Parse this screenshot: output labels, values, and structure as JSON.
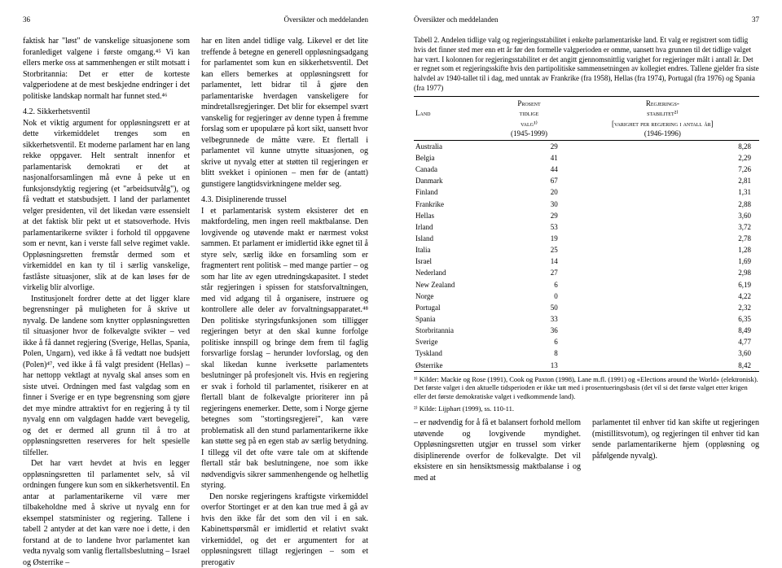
{
  "leftPage": {
    "pageNum": "36",
    "running": "Översikter och meddelanden",
    "col1": {
      "p1": "faktisk har \"løst\" de vanskelige situasjonene som foranlediget valgene i første omgang.⁴⁵ Vi kan ellers merke oss at sammenhengen er stilt motsatt i Storbritannia: Det er etter de korteste valgperiodene at de mest beskjedne endringer i det politiske landskap normalt har funnet sted.⁴⁶",
      "h1": "4.2. Sikkerhetsventil",
      "p2": "Nok et viktig argument for oppløsningsrett er at dette virkemiddelet trenges som en sikkerhetsventil. Et moderne parlament har en lang rekke oppgaver. Helt sentralt innenfor et parlamentarisk demokrati er det at nasjonalforsamlingen må evne å peke ut en funksjonsdyktig regjering (et \"arbeidsutvålg\"), og få vedtatt et statsbudsjett. I land der parlamentet velger presidenten, vil det likedan være essensielt at det faktisk blir pekt ut et statsoverhode. Hvis parlamentarikerne svikter i forhold til oppgavene som er nevnt, kan i verste fall selve regimet vakle. Oppløsningsretten fremstår dermed som et virkemiddel en kan ty til i særlig vanskelige, fastlåste situasjoner, slik at de kan løses før de virkelig blir alvorlige.",
      "p3": "Institusjonelt fordrer dette at det ligger klare begrensninger på muligheten for å skrive ut nyvalg. De landene som knytter oppløsningsretten til situasjoner hvor de folkevalgte svikter – ved ikke å få dannet regjering (Sverige, Hellas, Spania, Polen, Ungarn), ved ikke å få vedtatt noe budsjett (Polen)⁴⁷, ved ikke å få valgt president (Hellas) – har nettopp vektlagt at nyvalg skal anses som en siste utvei. Ordningen med fast valgdag som en finner i Sverige er en type begrensning som gjøre det mye mindre attraktivt for en regjering å ty til nyvalg enn om valgdagen hadde vært bevegelig, og det er dermed all grunn til å tro at oppløsningsretten reserveres for helt spesielle tilfeller.",
      "p4": "Det har vært hevdet at hvis en legger oppløsningsretten til parlamentet selv, så vil ordningen fungere kun som en sikkerhetsventil. En antar at parlamentarikerne vil være mer tilbakeholdne med å skrive ut nyvalg enn for eksempel statsminister og regjering. Tallene i tabell 2 antyder at det kan være noe i dette, i den forstand at de to landene hvor parlamentet kan vedta nyvalg som vanlig flertallsbeslutning – Israel og Østerrike –"
    },
    "col2": {
      "p1": "har en liten andel tidlige valg. Likevel er det lite treffende å betegne en generell oppløsningsadgang for parlamentet som kun en sikkerhetsventil. Det kan ellers bemerkes at oppløsningsrett for parlamentet, lett bidrar til å gjøre den parlamentariske hverdagen vanskeligere for mindretallsregjeringer. Det blir for eksempel svært vanskelig for regjeringer av denne typen å fremme forslag som er upopulære på kort sikt, uansett hvor velbegrunnede de måtte være. Et flertall i parlamentet vil kunne utnytte situasjonen, og skrive ut nyvalg etter at støtten til regjeringen er blitt svekket i opinionen – men før de (antatt) gunstigere langtidsvirkningene melder seg.",
      "h2": "4.3. Disiplinerende trussel",
      "p2": "I et parlamentarisk system eksisterer det en maktfordeling, men ingen reell maktbalanse. Den lovgivende og utøvende makt er nærmest vokst sammen. Et parlament er imidlertid ikke egnet til å styre selv, særlig ikke en forsamling som er fragmentert rent politisk – med mange partier – og som har lite av egen utredningskapasitet. I stedet står regjeringen i spissen for statsforvaltningen, med vid adgang til å organisere, instruere og kontrollere alle deler av forvaltningsapparatet.⁴⁸ Den politiske styringsfunksjonen som tilligger regjeringen betyr at den skal kunne forfolge politiske innspill og bringe dem frem til faglig forsvarlige forslag – herunder lovforslag, og den skal likedan kunne iverksette parlamentets beslutninger på profesjonelt vis. Hvis en regjering er svak i forhold til parlamentet, risikerer en at flertall blant de folkevalgte prioriterer inn på regjeringens enemerker. Dette, som i Norge gjerne betegnes som \"stortingsregjerei\", kan være problematisk all den stund parlamentarikerne ikke kan støtte seg på en egen stab av særlig betydning. I tillegg vil det ofte være tale om at skiftende flertall står bak beslutningene, noe som ikke nødvendigvis sikrer sammenhengende og helhetlig styring.",
      "p3": "Den norske regjeringens kraftigste virkemiddel overfor Stortinget er at den kan true med å gå av hvis den ikke får det som den vil i en sak. Kabinettspørsmål er imidlertid et relativt svakt virkemiddel, og det er argumentert for at oppløsningsrett tillagt regjeringen – som et prerogativ"
    }
  },
  "rightPage": {
    "running": "Översikter och meddelanden",
    "pageNum": "37",
    "table": {
      "caption": "Tabell 2. Andelen tidlige valg og regjeringsstabilitet i enkelte parlamentariske land. Et valg er registrert som tidlig hvis det finner sted mer enn ett år før den formelle valgperioden er omme, uansett hva grunnen til det tidlige valget har vært. I kolonnen for regjeringsstabilitet er det angitt gjennomsnittlig varighet for regjeringer målt i antall år. Det er regnet som et regjeringsskifte hvis den partipolitiske sammensetningen av kollegiet endres. Tallene gjelder fra siste halvdel av 1940-tallet til i dag, med unntak av Frankrike (fra 1958), Hellas (fra 1974), Portugal (fra 1976) og Spania (fra 1977)",
      "head": {
        "c1": "Land",
        "c2a": "Prosent",
        "c2b": "tidlige",
        "c2c": "valg¹⁾",
        "c2d": "(1945-1999)",
        "c3a": "Regjerings-",
        "c3b": "stabilitet²⁾",
        "c3c": "[varighet per regjering i antall år]",
        "c3d": "(1946-1996)"
      },
      "rows": [
        [
          "Australia",
          "29",
          "8,28"
        ],
        [
          "Belgia",
          "41",
          "2,29"
        ],
        [
          "Canada",
          "44",
          "7,26"
        ],
        [
          "Danmark",
          "67",
          "2,81"
        ],
        [
          "Finland",
          "20",
          "1,31"
        ],
        [
          "Frankrike",
          "30",
          "2,88"
        ],
        [
          "Hellas",
          "29",
          "3,60"
        ],
        [
          "Irland",
          "53",
          "3,72"
        ],
        [
          "Island",
          "19",
          "2,78"
        ],
        [
          "Italia",
          "25",
          "1,28"
        ],
        [
          "Israel",
          "14",
          "1,69"
        ],
        [
          "Nederland",
          "27",
          "2,98"
        ],
        [
          "New Zealand",
          "6",
          "6,19"
        ],
        [
          "Norge",
          "0",
          "4,22"
        ],
        [
          "Portugal",
          "50",
          "2,32"
        ],
        [
          "Spania",
          "33",
          "6,35"
        ],
        [
          "Storbritannia",
          "36",
          "8,49"
        ],
        [
          "Sverige",
          "6",
          "4,77"
        ],
        [
          "Tyskland",
          "8",
          "3,60"
        ],
        [
          "Østerrike",
          "13",
          "8,42"
        ]
      ],
      "foot1": "¹⁾ Kilder: Mackie og Rose (1991), Cook og Paxton (1998), Lane m.fl. (1991) og «Elections around the World» (elektronisk). Det første valget i den aktuelle tidsperioden er ikke tatt med i prosentueringsbasis (det vil si det første valget etter krigen eller det første demokratiske valget i vedkommende land).",
      "foot2": "²⁾ Kilde: Lijphart (1999), ss. 110-11."
    },
    "bottom": {
      "p1": "– er nødvendig for å få et balansert forhold mellom utøvende og lovgivende myndighet. Oppløsningsretten utgjør en trussel som virker disiplinerende overfor de folkevalgte. Det vil eksistere en sin hensiktsmessig maktbalanse i og med at",
      "p2": "parlamentet til enhver tid kan skifte ut regjeringen (mistillitsvotum), og regjeringen til enhver tid kan sende parlamentarikerne hjem (oppløsning og påfølgende nyvalg)."
    }
  }
}
